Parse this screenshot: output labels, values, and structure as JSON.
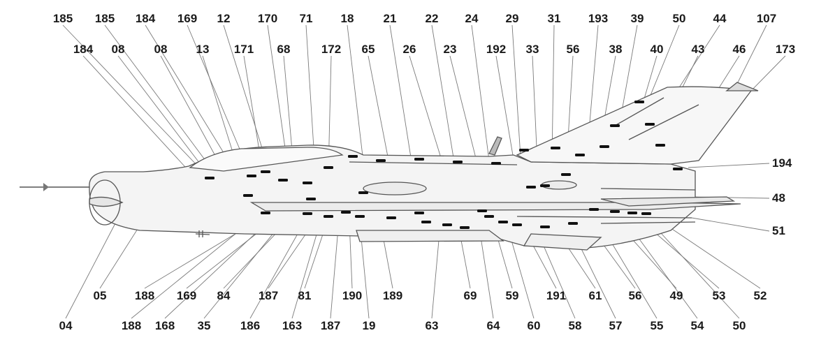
{
  "colors": {
    "ink": "#1a1a1a",
    "line": "#6b6b6b",
    "fill": "#f4f4f4",
    "mark": "#111111"
  },
  "labels": {
    "top_row": [
      "185",
      "185",
      "184",
      "169",
      "12",
      "170",
      "71",
      "18",
      "21",
      "22",
      "24",
      "29",
      "31",
      "193",
      "39",
      "50",
      "44",
      "107"
    ],
    "second_row": [
      "184",
      "08",
      "08",
      "13",
      "171",
      "68",
      "172",
      "65",
      "26",
      "23",
      "192",
      "33",
      "56",
      "38",
      "40",
      "43",
      "46",
      "173"
    ],
    "right_side": [
      "194",
      "48",
      "51"
    ],
    "bottom_row1": [
      "05",
      "188",
      "169",
      "84",
      "187",
      "81",
      "190",
      "189",
      "69",
      "59",
      "191",
      "61",
      "56",
      "49",
      "53",
      "52"
    ],
    "bottom_row2": [
      "04",
      "188",
      "168",
      "35",
      "186",
      "163",
      "187",
      "19",
      "63",
      "64",
      "60",
      "58",
      "57",
      "55",
      "54",
      "50"
    ]
  }
}
